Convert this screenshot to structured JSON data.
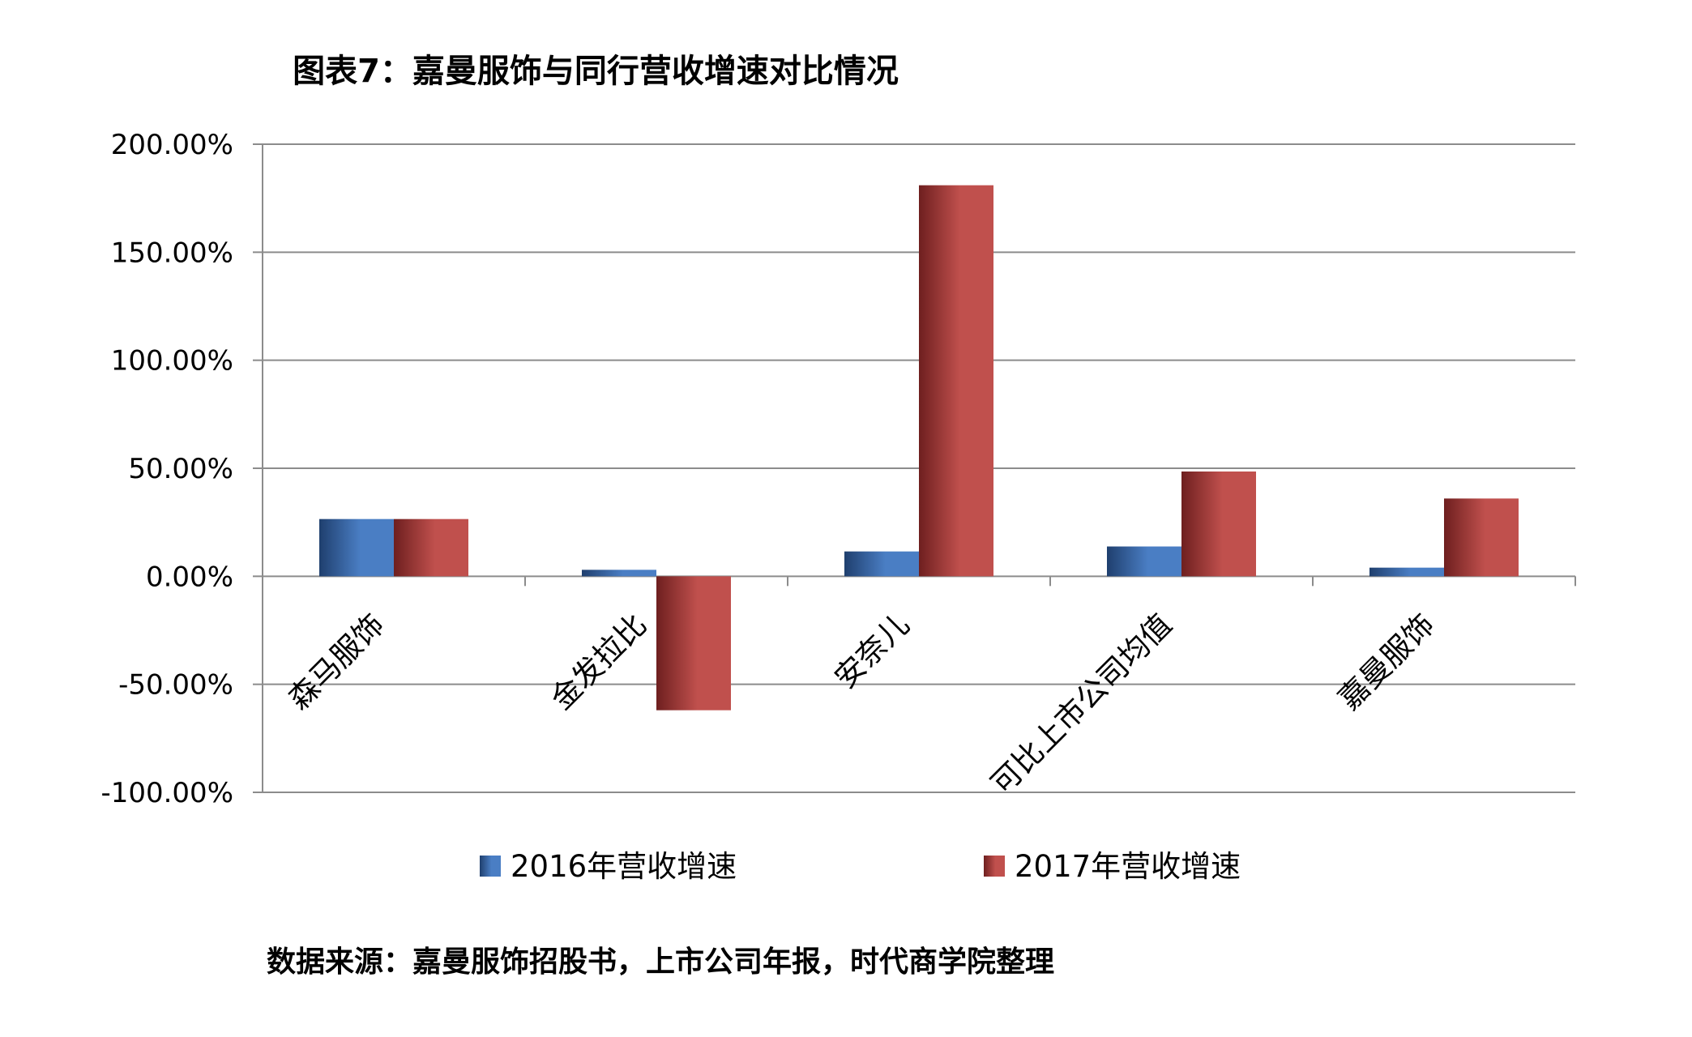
{
  "title": "图表7：嘉曼服饰与同行营收增速对比情况",
  "source": "数据来源：嘉曼服饰招股书，上市公司年报，时代商学院整理",
  "chart_data": {
    "type": "bar",
    "categories": [
      "森马服饰",
      "金发拉比",
      "安奈儿",
      "可比上市公司均值",
      "嘉曼服饰"
    ],
    "series": [
      {
        "name": "2016年营收增速",
        "values": [
          26.5,
          3.0,
          11.5,
          13.8,
          4.0
        ],
        "color": "#4a7ec4"
      },
      {
        "name": "2017年营收增速",
        "values": [
          26.5,
          -62.0,
          181.0,
          48.5,
          36.0
        ],
        "color": "#c0504d"
      }
    ],
    "ylim": [
      -100,
      200
    ],
    "yticks": [
      "200.00%",
      "150.00%",
      "100.00%",
      "50.00%",
      "0.00%",
      "-50.00%",
      "-100.00%"
    ],
    "ytick_values": [
      200,
      150,
      100,
      50,
      0,
      -50,
      -100
    ],
    "grid": true,
    "legend": "bottom"
  }
}
